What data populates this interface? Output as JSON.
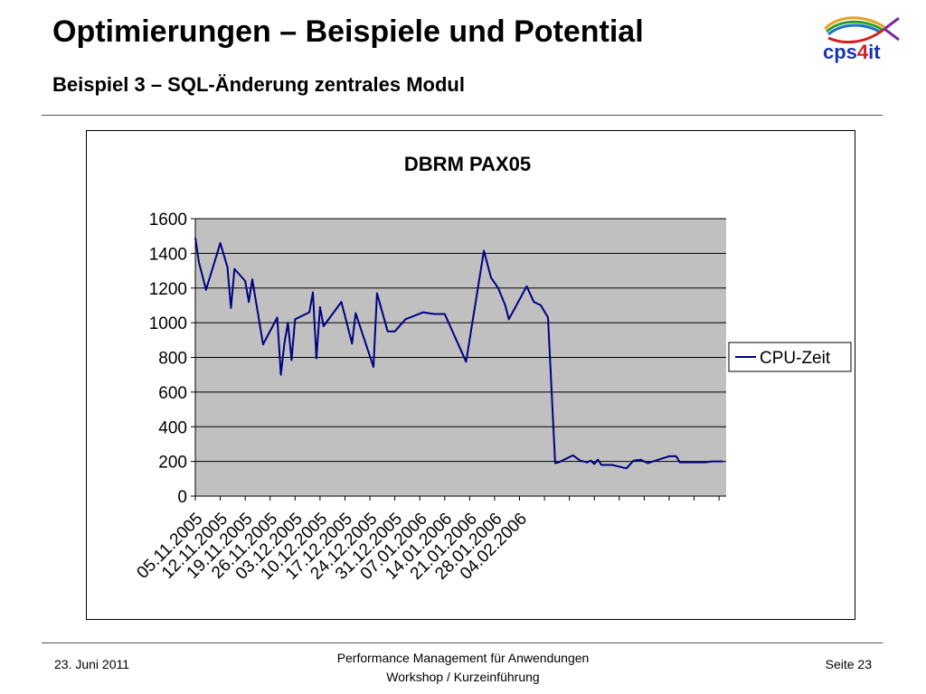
{
  "slide": {
    "title": "Optimierungen – Beispiele und Potential",
    "subtitle": "Beispiel 3 – SQL-Änderung zentrales Modul"
  },
  "logo": {
    "text_main": "cps",
    "text_digit": "4",
    "text_end": "it",
    "icon": "fish-logo-icon"
  },
  "footer": {
    "date": "23. Juni 2011",
    "center_line1": "Performance Management für Anwendungen",
    "center_line2": "Workshop / Kurzeinführung",
    "page": "Seite 23"
  },
  "colors": {
    "line": "#000080",
    "plot_bg": "#c0c0c0",
    "grid": "#000000"
  },
  "chart_data": {
    "type": "line",
    "title": "DBRM PAX05",
    "xlabel": "",
    "ylabel": "",
    "ylim": [
      0,
      1600
    ],
    "yticks": [
      0,
      200,
      400,
      600,
      800,
      1000,
      1200,
      1400,
      1600
    ],
    "x_tick_labels": [
      "05.11.2005",
      "12.11.2005",
      "19.11.2005",
      "26.11.2005",
      "03.12.2005",
      "10.12.2005",
      "17.12.2005",
      "24.12.2005",
      "31.12.2005",
      "07.01.2006",
      "14.01.2006",
      "21.01.2006",
      "28.01.2006",
      "04.02.2006"
    ],
    "grid": "horizontal",
    "legend": "right",
    "series": [
      {
        "name": "CPU-Zeit",
        "points": [
          [
            "2005-11-05",
            1490
          ],
          [
            "2005-11-06",
            1350
          ],
          [
            "2005-11-07",
            1270
          ],
          [
            "2005-11-08",
            1190
          ],
          [
            "2005-11-11",
            1390
          ],
          [
            "2005-11-12",
            1460
          ],
          [
            "2005-11-14",
            1320
          ],
          [
            "2005-11-15",
            1085
          ],
          [
            "2005-11-16",
            1310
          ],
          [
            "2005-11-19",
            1240
          ],
          [
            "2005-11-20",
            1120
          ],
          [
            "2005-11-21",
            1250
          ],
          [
            "2005-11-24",
            875
          ],
          [
            "2005-11-28",
            1030
          ],
          [
            "2005-11-29",
            700
          ],
          [
            "2005-11-30",
            880
          ],
          [
            "2005-12-01",
            1000
          ],
          [
            "2005-12-02",
            785
          ],
          [
            "2005-12-03",
            1020
          ],
          [
            "2005-12-04",
            1030
          ],
          [
            "2005-12-07",
            1060
          ],
          [
            "2005-12-08",
            1175
          ],
          [
            "2005-12-09",
            795
          ],
          [
            "2005-12-10",
            1090
          ],
          [
            "2005-12-11",
            980
          ],
          [
            "2005-12-16",
            1120
          ],
          [
            "2005-12-19",
            880
          ],
          [
            "2005-12-20",
            1055
          ],
          [
            "2005-12-25",
            745
          ],
          [
            "2005-12-26",
            1170
          ],
          [
            "2005-12-29",
            950
          ],
          [
            "2005-12-31",
            950
          ],
          [
            "2006-01-03",
            1020
          ],
          [
            "2006-01-08",
            1060
          ],
          [
            "2006-01-11",
            1050
          ],
          [
            "2006-01-14",
            1050
          ],
          [
            "2006-01-20",
            775
          ],
          [
            "2006-01-25",
            1415
          ],
          [
            "2006-01-27",
            1260
          ],
          [
            "2006-01-29",
            1200
          ],
          [
            "2006-01-31",
            1100
          ],
          [
            "2006-02-01",
            1020
          ],
          [
            "2006-02-06",
            1210
          ],
          [
            "2006-02-08",
            1120
          ],
          [
            "2006-02-10",
            1100
          ],
          [
            "2006-02-12",
            1030
          ],
          [
            "2006-02-14",
            190
          ],
          [
            "2006-02-15",
            195
          ],
          [
            "2006-02-19",
            235
          ],
          [
            "2006-02-21",
            205
          ],
          [
            "2006-02-23",
            195
          ],
          [
            "2006-02-24",
            205
          ],
          [
            "2006-02-25",
            185
          ],
          [
            "2006-02-26",
            210
          ],
          [
            "2006-02-27",
            180
          ],
          [
            "2006-03-02",
            180
          ],
          [
            "2006-03-06",
            160
          ],
          [
            "2006-03-08",
            205
          ],
          [
            "2006-03-10",
            210
          ],
          [
            "2006-03-12",
            190
          ],
          [
            "2006-03-15",
            210
          ],
          [
            "2006-03-18",
            230
          ],
          [
            "2006-03-20",
            230
          ],
          [
            "2006-03-21",
            195
          ],
          [
            "2006-03-28",
            195
          ],
          [
            "2006-03-30",
            200
          ],
          [
            "2006-04-02",
            200
          ]
        ]
      }
    ]
  }
}
